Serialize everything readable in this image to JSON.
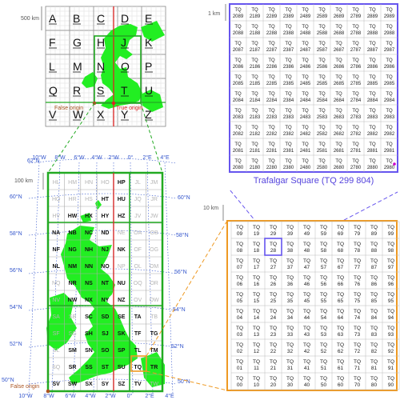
{
  "colors": {
    "grid_green": "#22aa22",
    "land_green": "#22ee22",
    "blue_box": "#6655ee",
    "orange_box": "#ee9922",
    "red_line": "#dd2222",
    "graticule_blue": "#3355cc",
    "magenta_point": "#cc00cc",
    "caption_blue": "#5544dd"
  },
  "top_map": {
    "scale_label": "500 km",
    "letters": [
      [
        "A",
        "B",
        "C",
        "D",
        "E"
      ],
      [
        "F",
        "G",
        "H",
        "J",
        "K"
      ],
      [
        "L",
        "M",
        "N",
        "O",
        "P"
      ],
      [
        "Q",
        "R",
        "S",
        "T",
        "U"
      ],
      [
        "V",
        "W",
        "X",
        "Y",
        "Z"
      ]
    ],
    "false_origin_label": "False origin",
    "true_origin_label": "True origin"
  },
  "blue_panel": {
    "scale_label": "1 km",
    "prefix": "TQ",
    "x_codes": [
      "2080",
      "2180",
      "2280",
      "2380",
      "2480",
      "2580",
      "2680",
      "2780",
      "2880",
      "2980"
    ],
    "caption": "Trafalgar Square (TQ 299 804)"
  },
  "orange_panel": {
    "scale_label": "10 km",
    "prefix": "TQ"
  },
  "britain_map": {
    "scale_label": "100 km",
    "false_origin_label": "False origin",
    "top_lon_labels": [
      "10°W",
      "8°W",
      "6°W",
      "4°W",
      "2°W",
      "0°",
      "2°E",
      "4°E"
    ],
    "bottom_lon_labels": [
      "10°W",
      "8°W",
      "6°W",
      "4°W",
      "2°W",
      "0°",
      "2°E",
      "4°E"
    ],
    "left_lat_labels": [
      "62°N",
      "60°N",
      "58°N",
      "56°N",
      "54°N",
      "52°N",
      "50°N"
    ],
    "right_lat_labels": [
      "60°N",
      "58°N",
      "56°N",
      "54°N",
      "52°N",
      "50°N"
    ],
    "squares": [
      [
        "HL",
        "HM",
        "HN",
        "HO",
        "HP",
        "JL",
        "JM"
      ],
      [
        "HQ",
        "HR",
        "HS",
        "HT",
        "HU",
        "JQ",
        "JR"
      ],
      [
        "HV",
        "HW",
        "HX",
        "HY",
        "HZ",
        "JV",
        "JW"
      ],
      [
        "NA",
        "NB",
        "NC",
        "ND",
        "NE",
        "OA",
        "OB"
      ],
      [
        "NF",
        "NG",
        "NH",
        "NJ",
        "NK",
        "OF",
        "OG"
      ],
      [
        "NL",
        "NM",
        "NN",
        "NO",
        "NP",
        "OL",
        "OM"
      ],
      [
        "NQ",
        "NR",
        "NS",
        "NT",
        "NU",
        "OQ",
        "OR"
      ],
      [
        "NV",
        "NW",
        "NX",
        "NY",
        "NZ",
        "OV",
        "OW"
      ],
      [
        "SA",
        "SB",
        "SC",
        "SD",
        "SE",
        "TA",
        "TB"
      ],
      [
        "SF",
        "SG",
        "SH",
        "SJ",
        "SK",
        "TF",
        "TG"
      ],
      [
        "SL",
        "SM",
        "SN",
        "SO",
        "SP",
        "TL",
        "TM"
      ],
      [
        "SQ",
        "SR",
        "SS",
        "ST",
        "SU",
        "TQ",
        "TR"
      ],
      [
        "SV",
        "SW",
        "SX",
        "SY",
        "SZ",
        "TV",
        "TW"
      ]
    ],
    "land_squares": [
      "HP",
      "HT",
      "HU",
      "HW",
      "HX",
      "HY",
      "HZ",
      "NA",
      "NB",
      "NC",
      "ND",
      "NF",
      "NG",
      "NH",
      "NJ",
      "NK",
      "NL",
      "NM",
      "NN",
      "NO",
      "NR",
      "NS",
      "NT",
      "NU",
      "NW",
      "NX",
      "NY",
      "NZ",
      "SC",
      "SD",
      "SE",
      "TA",
      "SH",
      "SJ",
      "SK",
      "TF",
      "TG",
      "SM",
      "SN",
      "SO",
      "SP",
      "TL",
      "TM",
      "SR",
      "SS",
      "ST",
      "SU",
      "TQ",
      "TR",
      "SV",
      "SW",
      "SX",
      "SY",
      "SZ",
      "TV"
    ]
  }
}
